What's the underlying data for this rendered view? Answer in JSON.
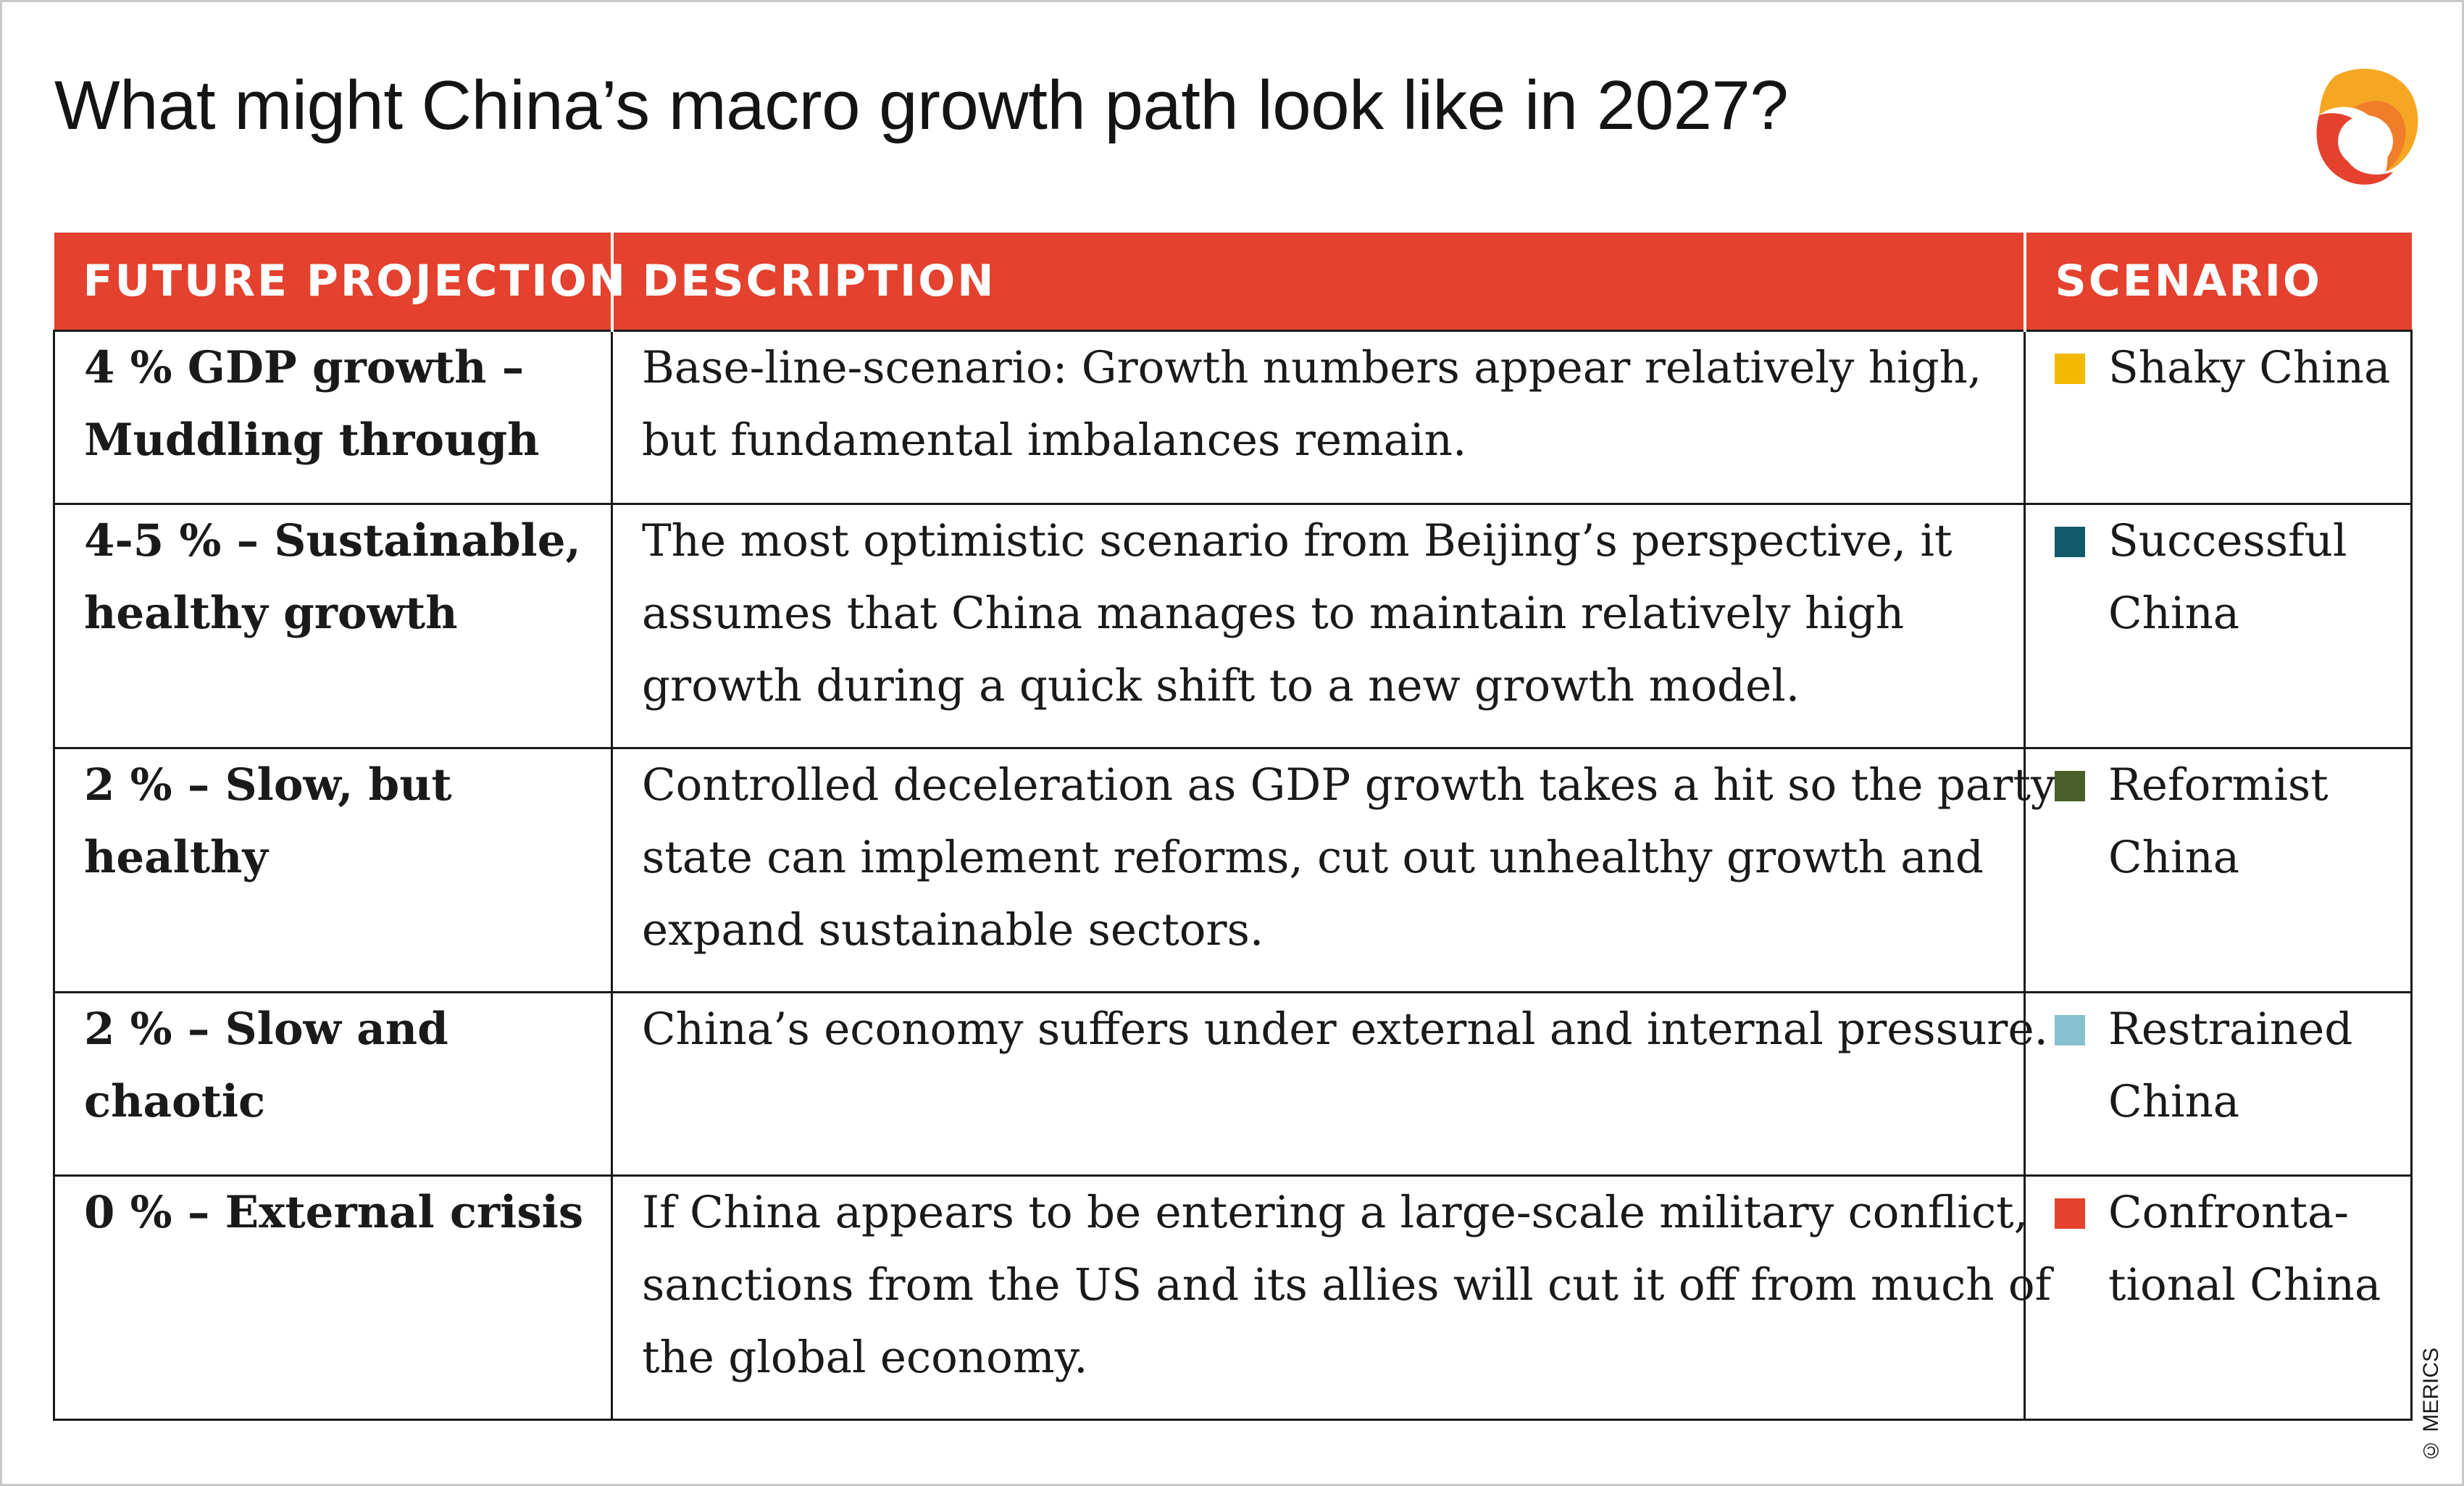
{
  "title": "What might China’s macro growth path look like in 2027?",
  "copyright": "© MERICS",
  "colors": {
    "header_bg": "#e4412e",
    "logo_red": "#e4412e",
    "logo_orange": "#f5a623"
  },
  "table": {
    "headers": [
      "FUTURE PROJECTION",
      "DESCRIPTION",
      "SCENARIO"
    ],
    "rows": [
      {
        "projection": [
          "4 % GDP growth –",
          "Muddling through"
        ],
        "description": [
          "Base-line-scenario: Growth numbers appear relatively high,",
          "but fundamental imbalances remain."
        ],
        "scenario": [
          "Shaky China"
        ],
        "color": "#f5b800"
      },
      {
        "projection": [
          "4-5 % – Sustainable,",
          "healthy growth"
        ],
        "description": [
          "The most optimistic scenario from Beijing’s perspective, it",
          "assumes that China manages to maintain relatively high",
          "growth during a quick shift to a new growth model."
        ],
        "scenario": [
          "Successful",
          "China"
        ],
        "color": "#115968"
      },
      {
        "projection": [
          "2 % – Slow, but",
          "healthy"
        ],
        "description": [
          "Controlled deceleration as GDP growth takes a hit so the party",
          "state can implement reforms, cut out unhealthy growth and",
          "expand sustainable sectors."
        ],
        "scenario": [
          "Reformist",
          "China"
        ],
        "color": "#4a5e2a"
      },
      {
        "projection": [
          "2 % – Slow and",
          "chaotic"
        ],
        "description": [
          "China’s economy suffers under external and internal pressure."
        ],
        "scenario": [
          "Restrained",
          "China"
        ],
        "color": "#86c1cd"
      },
      {
        "projection": [
          "0 % – External crisis"
        ],
        "description": [
          "If China appears to be entering a large-scale military conflict,",
          "sanctions from the US and its allies will cut it off from much of",
          "the global economy."
        ],
        "scenario": [
          "Confronta-",
          "tional China"
        ],
        "color": "#e4412e"
      }
    ]
  }
}
